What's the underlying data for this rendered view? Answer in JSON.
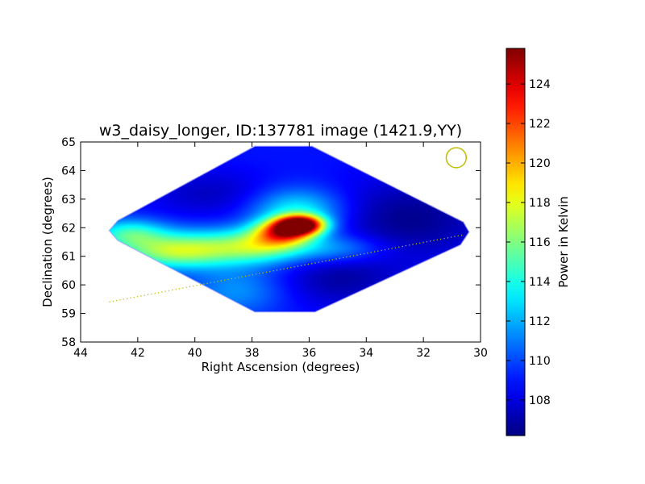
{
  "chart_data": {
    "type": "heatmap",
    "title": "w3_daisy_longer, ID:137781 image (1421.9,YY)",
    "xlabel": "Right Ascension (degrees)",
    "ylabel": "Declination (degrees)",
    "xlim": [
      44,
      30
    ],
    "ylim": [
      58,
      65
    ],
    "xticks": [
      44,
      42,
      40,
      38,
      36,
      34,
      32,
      30
    ],
    "yticks": [
      58,
      59,
      60,
      61,
      62,
      63,
      64,
      65
    ],
    "grid": false,
    "colormap": "jet",
    "colorbar": {
      "label": "Power in Kelvin",
      "range": [
        106.2,
        125.8
      ],
      "ticks": [
        108,
        110,
        112,
        114,
        116,
        118,
        120,
        122,
        124
      ]
    },
    "map_outline": [
      [
        43,
        61.9
      ],
      [
        42.7,
        62.25
      ],
      [
        37.9,
        64.85
      ],
      [
        35.9,
        64.85
      ],
      [
        30.6,
        62.2
      ],
      [
        30.4,
        61.85
      ],
      [
        30.7,
        61.4
      ],
      [
        35.8,
        59.05
      ],
      [
        37.9,
        59.05
      ],
      [
        42.7,
        61.55
      ]
    ],
    "background_level": 109,
    "features": [
      {
        "ra": 36.3,
        "dec": 62.1,
        "peak": 125.5,
        "sigma_ra": 0.55,
        "sigma_dec": 0.22
      },
      {
        "ra": 36.9,
        "dec": 61.85,
        "peak": 119,
        "sigma_ra": 0.7,
        "sigma_dec": 0.3
      },
      {
        "ra": 36.4,
        "dec": 62.55,
        "peak": 114,
        "sigma_ra": 1.1,
        "sigma_dec": 0.55
      },
      {
        "ra": 39.5,
        "dec": 61.3,
        "peak": 115,
        "sigma_ra": 1.8,
        "sigma_dec": 0.45
      },
      {
        "ra": 42.3,
        "dec": 61.8,
        "peak": 114,
        "sigma_ra": 0.9,
        "sigma_dec": 0.35
      },
      {
        "ra": 41,
        "dec": 61.1,
        "peak": 113,
        "sigma_ra": 1.3,
        "sigma_dec": 0.4
      },
      {
        "ra": 37.5,
        "dec": 61.4,
        "peak": 113.5,
        "sigma_ra": 1,
        "sigma_dec": 0.4
      },
      {
        "ra": 35,
        "dec": 61.25,
        "peak": 112,
        "sigma_ra": 1.2,
        "sigma_dec": 0.35
      },
      {
        "ra": 38.5,
        "dec": 59.8,
        "peak": 111.5,
        "sigma_ra": 1.2,
        "sigma_dec": 0.6
      },
      {
        "ra": 32.5,
        "dec": 62.3,
        "peak": 106.5,
        "sigma_ra": 2,
        "sigma_dec": 1
      },
      {
        "ra": 35,
        "dec": 60.2,
        "peak": 107,
        "sigma_ra": 1.5,
        "sigma_dec": 0.7
      },
      {
        "ra": 39.5,
        "dec": 63.2,
        "peak": 107.5,
        "sigma_ra": 1.5,
        "sigma_dec": 0.6
      }
    ],
    "scan_line": {
      "from": [
        43,
        59.4
      ],
      "to": [
        30.6,
        61.75
      ]
    },
    "beam_circle": {
      "ra": 30.85,
      "dec": 64.45,
      "radius_deg": 0.35
    },
    "line_color": "#bfbf00"
  }
}
